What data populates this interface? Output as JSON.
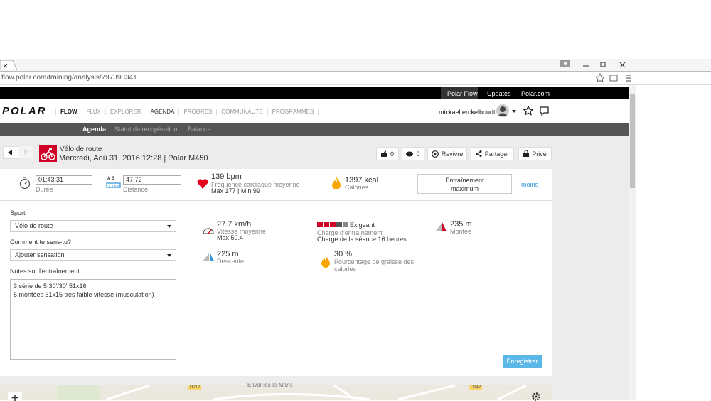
{
  "browser": {
    "url": "flow.polar.com/training/analysis/797398341"
  },
  "top_bar": {
    "links": [
      "Polar Flow",
      "Updates",
      "Polar.com"
    ]
  },
  "nav": {
    "logo": "POLAR",
    "items": [
      "FLOW",
      "FLUX",
      "EXPLORER",
      "AGENDA",
      "PROGRÈS",
      "COMMUNAUTÉ",
      "PROGRAMMES"
    ],
    "user": "mickael erckelboudt"
  },
  "sub_nav": {
    "items": [
      "Agenda",
      "Statut de récupération",
      "Balance"
    ]
  },
  "session": {
    "sport": "Vélo de route",
    "details": "Mercredi, Aoû 31, 2016 12:28 | Polar M450",
    "actions": {
      "likes": "0",
      "comments": "0",
      "relive": "Revivre",
      "share": "Partager",
      "privacy": "Privé"
    }
  },
  "summary": {
    "duration": {
      "value": "01:43:31",
      "label": "Durée"
    },
    "distance": {
      "icon_text": "A  B",
      "value": "47.72",
      "label": "Distance"
    },
    "heart_rate": {
      "value": "139 bpm",
      "label": "Fréquence cardiaque moyenne",
      "detail": "Max 177 | Min 99"
    },
    "calories": {
      "value": "1397 kcal",
      "label": "Calories"
    },
    "training_benefit": "Entraînement maximum",
    "toggle": "moins"
  },
  "form": {
    "sport_label": "Sport",
    "sport_value": "Vélo de route",
    "feeling_label": "Comment te sens-tu?",
    "feeling_value": "Ajouter sensation",
    "notes_label": "Notes sur l'entraînement",
    "notes": [
      "3 série de 5 30'/30' 51x16",
      "5 montées 51x15 très faible vitesse (musculation)"
    ],
    "save": "Enregistrer"
  },
  "stats": {
    "speed": {
      "value": "27.7 km/h",
      "label": "Vitesse moyenne",
      "detail": "Max 50.4"
    },
    "descent": {
      "value": "225 m",
      "label": "Descente"
    },
    "load": {
      "value": "Exigeant",
      "label": "Charge d'entraînement",
      "detail": "Charge de la séance 16 heures"
    },
    "fat": {
      "value": "30 %",
      "label": "Pourcentage de graisse des calories"
    },
    "ascent": {
      "value": "235 m",
      "label": "Montée"
    }
  },
  "map": {
    "labels": [
      "D212",
      "Etival-lès-le-Mans",
      "D142"
    ]
  }
}
